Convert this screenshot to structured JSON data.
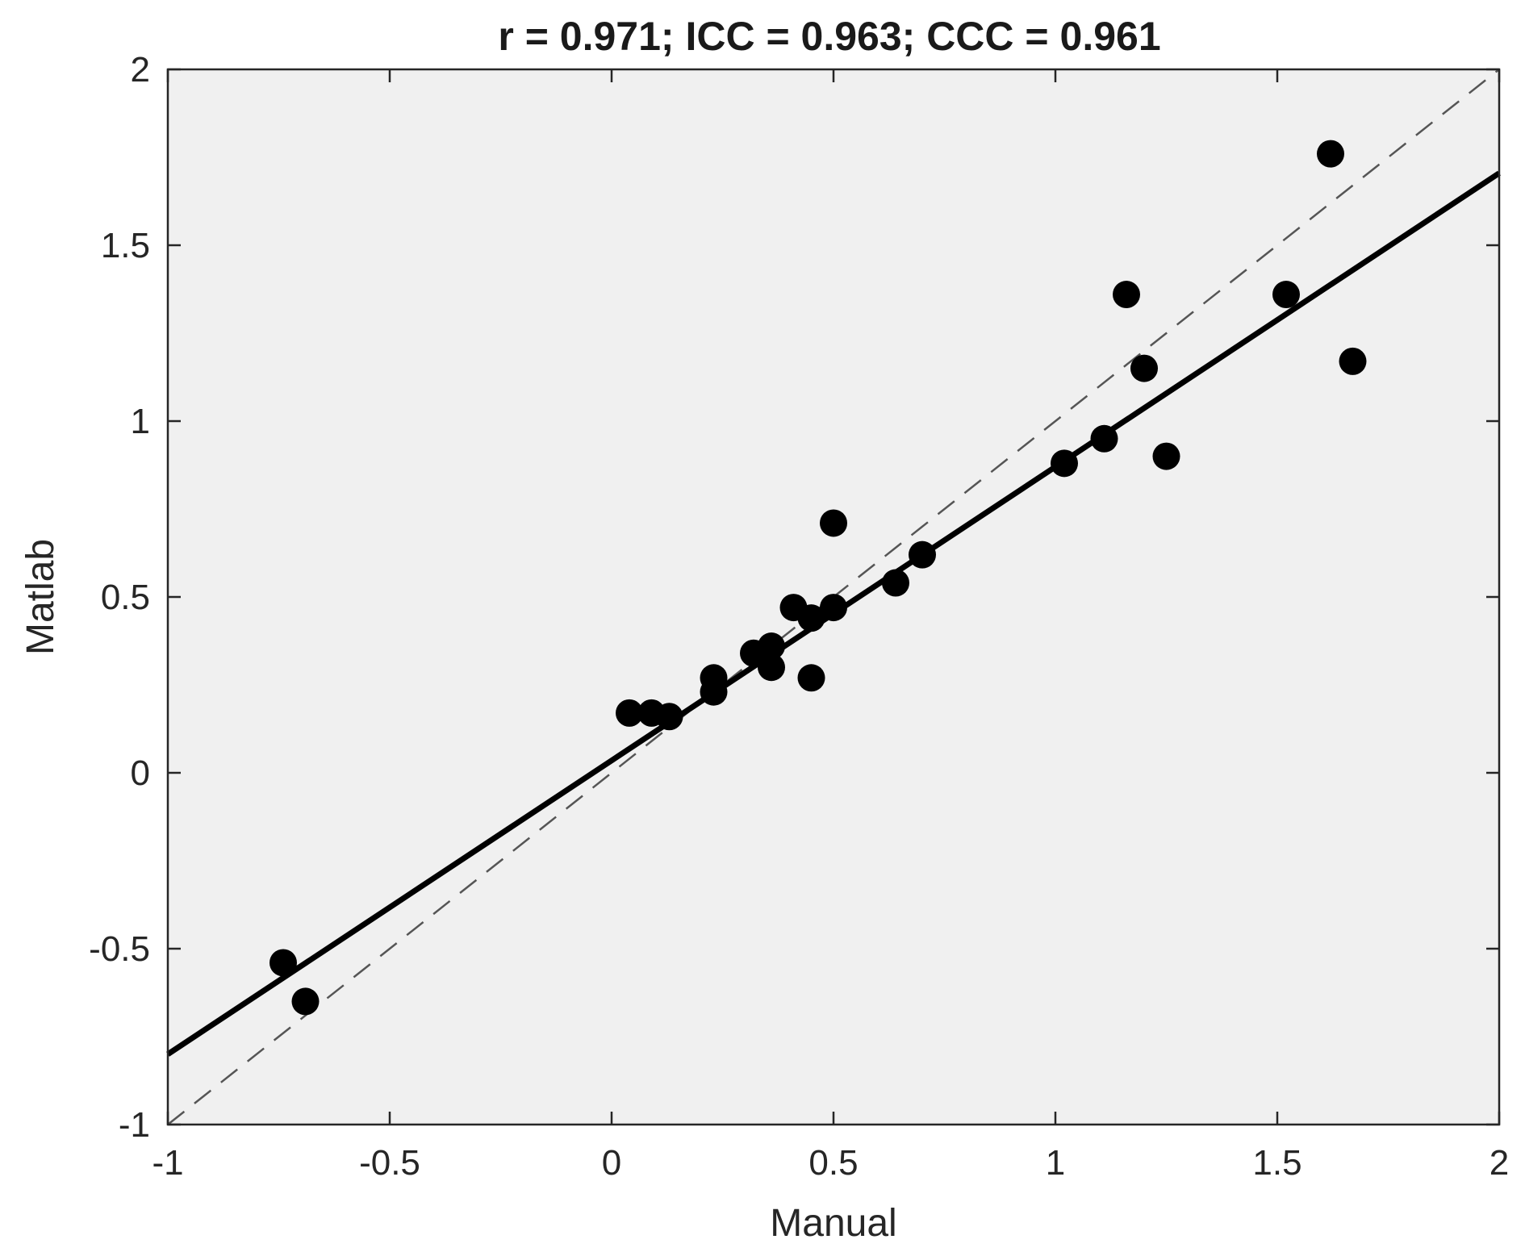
{
  "chart_data": {
    "type": "scatter",
    "title": "r = 0.971; ICC = 0.963; CCC = 0.961",
    "xlabel": "Manual",
    "ylabel": "Matlab",
    "xlim": [
      -1,
      2
    ],
    "ylim": [
      -1,
      2
    ],
    "xticks": [
      -1,
      -0.5,
      0,
      0.5,
      1,
      1.5,
      2
    ],
    "xtick_labels": [
      "-1",
      "-0.5",
      "0",
      "0.5",
      "1",
      "1.5",
      "2"
    ],
    "yticks": [
      -1,
      -0.5,
      0,
      0.5,
      1,
      1.5,
      2
    ],
    "ytick_labels": [
      "-1",
      "-0.5",
      "0",
      "0.5",
      "1",
      "1.5",
      "2"
    ],
    "grid": false,
    "background_color": "#f0f0f0",
    "marker_color": "#000000",
    "points": [
      {
        "x": -0.74,
        "y": -0.54
      },
      {
        "x": -0.69,
        "y": -0.65
      },
      {
        "x": 0.04,
        "y": 0.17
      },
      {
        "x": 0.09,
        "y": 0.17
      },
      {
        "x": 0.13,
        "y": 0.16
      },
      {
        "x": 0.23,
        "y": 0.27
      },
      {
        "x": 0.23,
        "y": 0.23
      },
      {
        "x": 0.32,
        "y": 0.34
      },
      {
        "x": 0.36,
        "y": 0.36
      },
      {
        "x": 0.36,
        "y": 0.3
      },
      {
        "x": 0.41,
        "y": 0.47
      },
      {
        "x": 0.45,
        "y": 0.44
      },
      {
        "x": 0.45,
        "y": 0.27
      },
      {
        "x": 0.5,
        "y": 0.47
      },
      {
        "x": 0.5,
        "y": 0.71
      },
      {
        "x": 0.64,
        "y": 0.54
      },
      {
        "x": 0.7,
        "y": 0.62
      },
      {
        "x": 1.02,
        "y": 0.88
      },
      {
        "x": 1.11,
        "y": 0.95
      },
      {
        "x": 1.16,
        "y": 1.36
      },
      {
        "x": 1.2,
        "y": 1.15
      },
      {
        "x": 1.25,
        "y": 0.9
      },
      {
        "x": 1.52,
        "y": 1.36
      },
      {
        "x": 1.62,
        "y": 1.76
      },
      {
        "x": 1.67,
        "y": 1.17
      }
    ],
    "regression_line": {
      "slope": 0.835,
      "intercept": 0.035,
      "style": "solid",
      "color": "#000000"
    },
    "identity_line": {
      "style": "dashed",
      "color": "#555555"
    }
  }
}
